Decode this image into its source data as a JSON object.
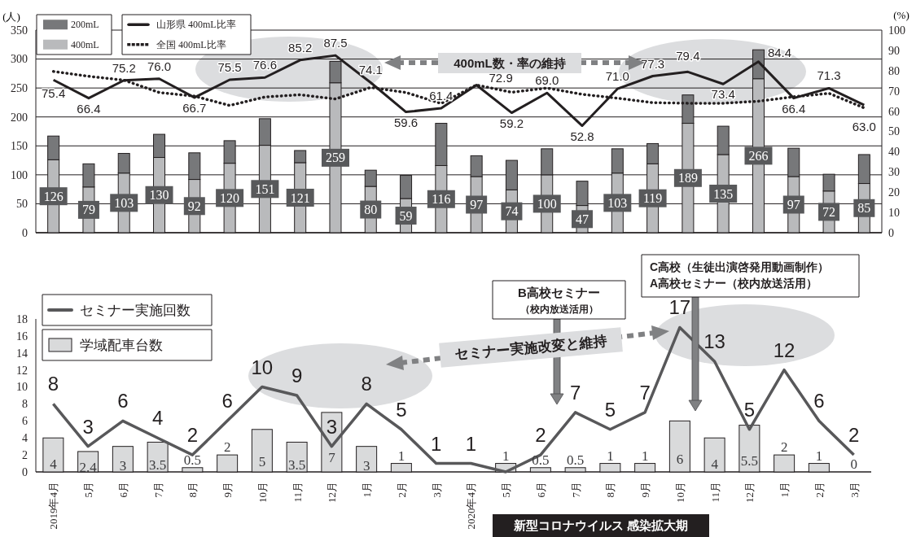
{
  "chart_data": [
    {
      "type": "bar",
      "stacked": true,
      "categories": [
        null,
        null,
        null,
        null,
        null,
        null,
        null,
        null,
        null,
        null,
        null,
        null,
        null,
        null,
        null,
        null,
        null,
        null,
        null,
        null,
        null,
        null,
        null,
        null
      ],
      "series": [
        {
          "name": "400mL",
          "color": "#b9babc",
          "values": [
            126,
            79,
            103,
            130,
            92,
            120,
            151,
            121,
            259,
            80,
            59,
            116,
            97,
            74,
            100,
            47,
            103,
            119,
            189,
            135,
            266,
            97,
            72,
            85
          ],
          "value_labels": [
            "126",
            "79",
            "103",
            "130",
            "92",
            "120",
            "151",
            "121",
            "259",
            "80",
            "59",
            "116",
            "97",
            "74",
            "100",
            "47",
            "103",
            "119",
            "189",
            "135",
            "266",
            "97",
            "72",
            "85"
          ]
        },
        {
          "name": "200mL",
          "color": "#77787a",
          "values": [
            41,
            40,
            34,
            40,
            46,
            39,
            46,
            21,
            37,
            28,
            40,
            73,
            36,
            51,
            45,
            42,
            42,
            35,
            49,
            49,
            50,
            49,
            29,
            50
          ]
        },
        {
          "name": "山形県 400mL比率",
          "type": "line",
          "axis": "y2",
          "color": "#231f20",
          "line_style": "solid",
          "values": [
            75.4,
            66.4,
            75.2,
            76.0,
            66.7,
            75.5,
            76.6,
            85.2,
            87.5,
            74.1,
            59.6,
            61.4,
            72.9,
            59.2,
            69.0,
            52.8,
            71.0,
            77.3,
            79.4,
            73.4,
            84.4,
            66.4,
            71.3,
            63.0
          ],
          "value_labels": [
            "75.4",
            "66.4",
            "75.2",
            "76.0",
            "66.7",
            "75.5",
            "76.6",
            "85.2",
            "87.5",
            "74.1",
            "59.6",
            "61.4",
            "72.9",
            "59.2",
            "69.0",
            "52.8",
            "71.0",
            "77.3",
            "79.4",
            "73.4",
            "84.4",
            "66.4",
            "71.3",
            "63.0"
          ]
        },
        {
          "name": "全国 400mL比率",
          "type": "line",
          "axis": "y2",
          "color": "#231f20",
          "line_style": "dotted",
          "values": [
            79.6,
            77.2,
            75.3,
            69.2,
            67.4,
            62.8,
            67,
            68.1,
            66,
            71.7,
            69.2,
            63.8,
            72.9,
            69.3,
            71.4,
            68.3,
            66.4,
            64.2,
            63.9,
            63.9,
            64.9,
            67.1,
            68.8,
            61.6
          ]
        }
      ],
      "ylim": [
        0,
        350
      ],
      "yticks": [
        0,
        50,
        100,
        150,
        200,
        250,
        300,
        350
      ],
      "y2lim": [
        0,
        100
      ],
      "y2ticks": [
        0,
        10,
        20,
        30,
        40,
        50,
        60,
        70,
        80,
        90,
        100
      ],
      "ylabel": "(人)",
      "y2label": "(%)",
      "grid": "y",
      "legend": "top left",
      "annotations": [
        "400mL数・率の維持"
      ]
    },
    {
      "type": "bar",
      "categories": [
        "2019年4月",
        "5月",
        "6月",
        "7月",
        "8月",
        "9月",
        "10月",
        "11月",
        "12月",
        "1月",
        "2月",
        "3月",
        "2020年4月",
        "5月",
        "6月",
        "7月",
        "8月",
        "9月",
        "10月",
        "11月",
        "12月",
        "1月",
        "2月",
        "3月"
      ],
      "series": [
        {
          "name": "学域配車台数",
          "color": "#d9dadb",
          "values": [
            4,
            2.4,
            3,
            3.5,
            0.5,
            2,
            5,
            3.5,
            7,
            3,
            1,
            null,
            null,
            1,
            0.5,
            0.5,
            1,
            1,
            6,
            4,
            5.5,
            2,
            1,
            0
          ],
          "value_labels": [
            "4",
            "2.4",
            "3",
            "3.5",
            "0.5",
            "2",
            "5",
            "3.5",
            "7",
            "3",
            "1",
            null,
            null,
            "1",
            "0.5",
            "0.5",
            "1",
            "1",
            "6",
            "4",
            "5.5",
            "2",
            "1",
            "0"
          ]
        },
        {
          "name": "セミナー実施回数",
          "type": "line",
          "color": "#58585a",
          "line_style": "solid",
          "values": [
            8,
            3,
            6,
            4,
            2,
            6,
            10,
            9,
            3,
            8,
            5,
            1,
            1,
            0,
            2,
            7,
            5,
            7,
            17,
            13,
            5,
            12,
            6,
            2
          ],
          "value_labels": [
            "8",
            "3",
            "6",
            "4",
            "2",
            "6",
            "10",
            "9",
            "3",
            "8",
            "5",
            "1",
            "1",
            null,
            "2",
            "7",
            "5",
            "7",
            "17",
            "13",
            "5",
            "12",
            "6",
            "2"
          ]
        }
      ],
      "ylim": [
        0,
        18
      ],
      "yticks": [
        0,
        2,
        4,
        6,
        8,
        10,
        12,
        14,
        16,
        18
      ],
      "legend": "top left",
      "annotations": [
        "セミナー実施改変と維持",
        "B高校セミナー",
        "（校内放送活用）",
        "C高校（生徒出演啓発用動画制作）",
        "A高校セミナー（校内放送活用）",
        "新型コロナウイルス 感染拡大期"
      ]
    }
  ]
}
